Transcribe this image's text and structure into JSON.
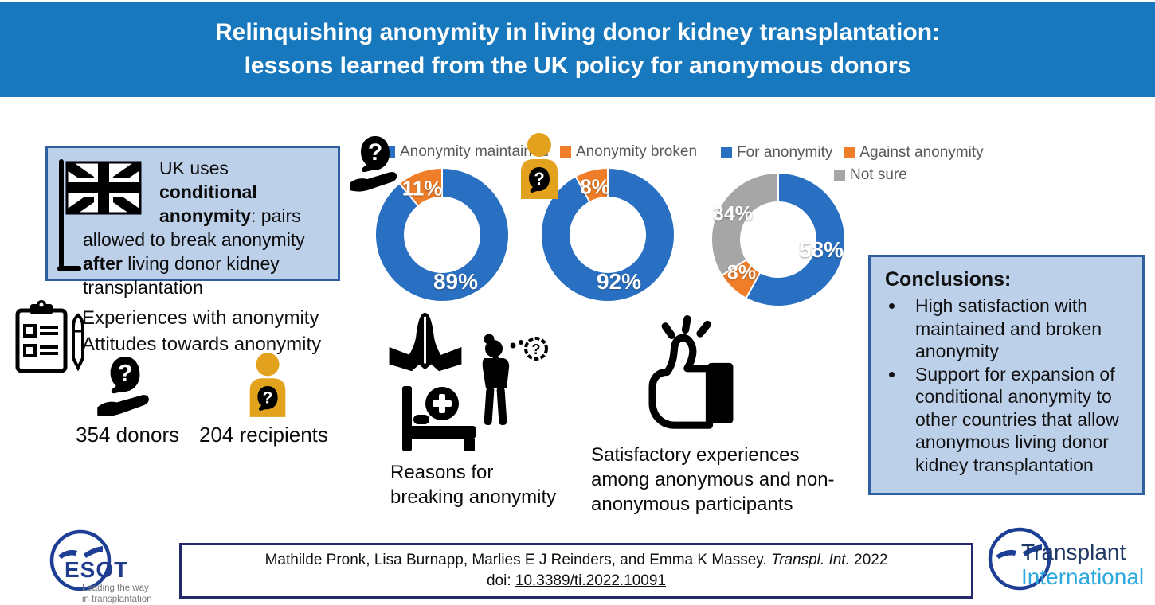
{
  "palette": {
    "header_blue": "#1878BE",
    "blue": "#2A70C2",
    "orange": "#F07D28",
    "grey": "#A6A6A6",
    "amber": "#E3A21E",
    "box_fill": "#BDD0EA",
    "box_border": "#2E5FA3",
    "citation_border": "#23286B",
    "logo_navy": "#1C3E94",
    "ti_lightblue": "#2EA9DE",
    "legend_text": "#595959"
  },
  "header": {
    "title_line1": "Relinquishing anonymity in living donor kidney transplantation:",
    "title_line2": "lessons learned from the UK policy for anonymous donors"
  },
  "uk_box": {
    "t1": "UK uses ",
    "b1": "conditional anonymity",
    "t2": ": pairs allowed to break anonymity ",
    "b2": "after",
    "t3": " living donor kidney transplantation"
  },
  "study": {
    "line1": "Experiences with anonymity",
    "line2": "Attitudes towards anonymity",
    "donors_count": "354 donors",
    "recipients_count": "204 recipients"
  },
  "chart_data": [
    {
      "type": "donut",
      "group": "donors",
      "legend": [
        "Anonymity maintained",
        "Anonymity broken"
      ],
      "segments": [
        {
          "label": "Anonymity maintained",
          "value": 89,
          "display": "89%",
          "color": "blue"
        },
        {
          "label": "Anonymity broken",
          "value": 11,
          "display": "11%",
          "color": "orange"
        }
      ],
      "center_icon": "anonymous-donor-hand"
    },
    {
      "type": "donut",
      "group": "recipients",
      "legend": [
        "Anonymity maintained",
        "Anonymity broken"
      ],
      "segments": [
        {
          "label": "Anonymity maintained",
          "value": 92,
          "display": "92%",
          "color": "blue"
        },
        {
          "label": "Anonymity broken",
          "value": 8,
          "display": "8%",
          "color": "orange"
        }
      ],
      "center_icon": "anonymous-recipient-person"
    },
    {
      "type": "donut",
      "group": "attitudes",
      "legend": [
        "For anonymity",
        "Against anonymity",
        "Not sure"
      ],
      "segments": [
        {
          "label": "For anonymity",
          "value": 58,
          "display": "58%",
          "color": "blue"
        },
        {
          "label": "Against anonymity",
          "value": 8,
          "display": "8%",
          "color": "orange"
        },
        {
          "label": "Not sure",
          "value": 34,
          "display": "34%",
          "color": "grey"
        }
      ],
      "center_icon": null
    }
  ],
  "reasons": {
    "line1": "Reasons for",
    "line2": "breaking anonymity"
  },
  "satisfaction": {
    "caption": "Satisfactory experiences among anonymous and non-anonymous participants"
  },
  "conclusions": {
    "title": "Conclusions:",
    "bullets": [
      "High satisfaction with maintained and broken anonymity",
      "Support for expansion of conditional anonymity to other countries that allow anonymous living donor kidney transplantation"
    ]
  },
  "citation": {
    "authors": "Mathilde Pronk, Lisa Burnapp, Marlies E J Reinders, and Emma K Massey.",
    "journal": "Transpl. Int.",
    "year": "2022",
    "doi_label": "doi:",
    "doi": "10.3389/ti.2022.10091"
  },
  "logos": {
    "esot": {
      "name": "ESOT",
      "tagline1": "Leading the way",
      "tagline2": "in transplantation"
    },
    "transplant_international": {
      "line1": "Transplant",
      "line2": "International"
    }
  }
}
